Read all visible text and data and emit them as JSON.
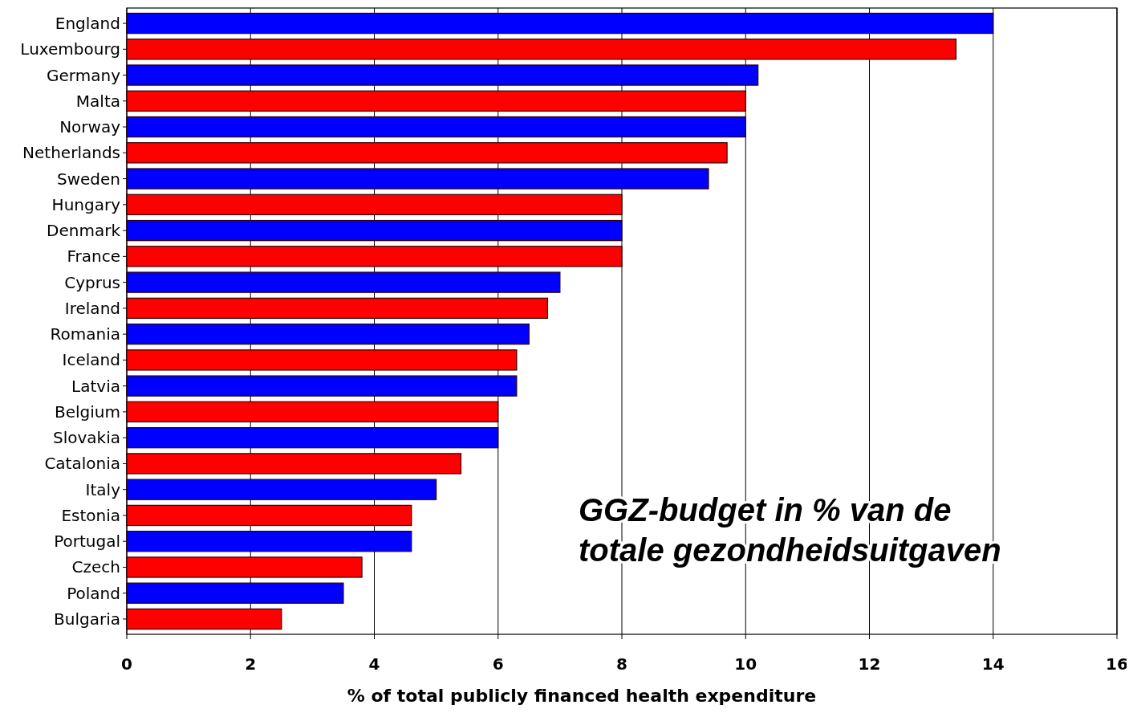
{
  "chart_data": {
    "type": "bar",
    "orientation": "horizontal",
    "categories": [
      "England",
      "Luxembourg",
      "Germany",
      "Malta",
      "Norway",
      "Netherlands",
      "Sweden",
      "Hungary",
      "Denmark",
      "France",
      "Cyprus",
      "Ireland",
      "Romania",
      "Iceland",
      "Latvia",
      "Belgium",
      "Slovakia",
      "Catalonia",
      "Italy",
      "Estonia",
      "Portugal",
      "Czech",
      "Poland",
      "Bulgaria"
    ],
    "values": [
      14,
      13.4,
      10.2,
      10,
      10,
      9.7,
      9.4,
      8,
      8,
      8,
      7,
      6.8,
      6.5,
      6.3,
      6.3,
      6,
      6,
      5.4,
      5,
      4.6,
      4.6,
      3.8,
      3.5,
      2.5
    ],
    "colors": [
      "#0000ff",
      "#ff0000",
      "#0000ff",
      "#ff0000",
      "#0000ff",
      "#ff0000",
      "#0000ff",
      "#ff0000",
      "#0000ff",
      "#ff0000",
      "#0000ff",
      "#ff0000",
      "#0000ff",
      "#ff0000",
      "#0000ff",
      "#ff0000",
      "#0000ff",
      "#ff0000",
      "#0000ff",
      "#ff0000",
      "#0000ff",
      "#ff0000",
      "#0000ff",
      "#ff0000"
    ],
    "xlim": [
      0,
      16
    ],
    "xticks": [
      0,
      2,
      4,
      6,
      8,
      10,
      12,
      14,
      16
    ],
    "xlabel": "% of total publicly financed health expenditure",
    "annotations": [
      "GGZ-budget in % van de totale gezondheidsuitgaven"
    ],
    "grid": "x"
  }
}
